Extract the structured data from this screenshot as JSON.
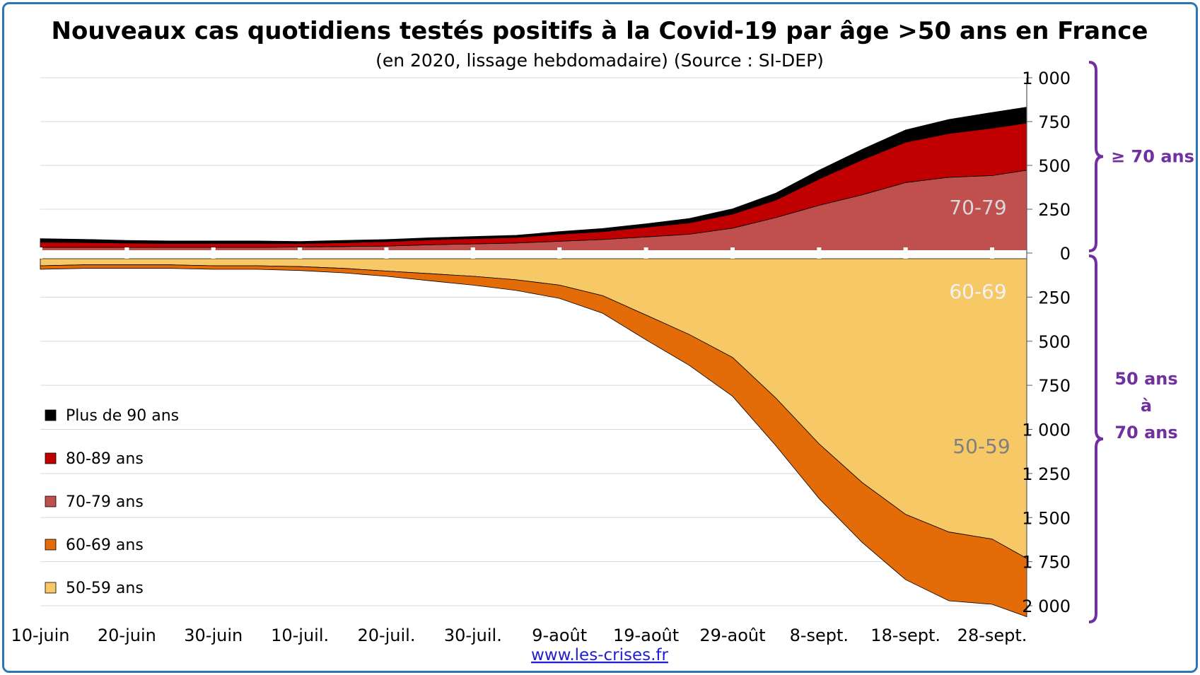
{
  "chart_data": {
    "type": "area",
    "title": "Nouveaux cas quotidiens testés positifs à la Covid-19 par âge >50 ans en France",
    "subtitle": "(en 2020, lissage hebdomadaire) (Source : SI-DEP)",
    "x_tick_labels": [
      "10-juin",
      "20-juin",
      "30-juin",
      "10-juil.",
      "20-juil.",
      "30-juil.",
      "9-août",
      "19-août",
      "29-août",
      "8-sept.",
      "18-sept.",
      "28-sept."
    ],
    "x_ticks_day_index": [
      0,
      10,
      20,
      30,
      40,
      50,
      60,
      70,
      80,
      90,
      100,
      110
    ],
    "y_upper_ticks": [
      "1 000",
      "750",
      "500",
      "250",
      "0"
    ],
    "y_lower_ticks": [
      "250",
      "500",
      "750",
      "1 000",
      "1 250",
      "1 500",
      "1 750",
      "2 000"
    ],
    "ylim_upper": [
      0,
      1000
    ],
    "ylim_lower": [
      0,
      2000
    ],
    "x_day_index": [
      0,
      5,
      10,
      15,
      20,
      25,
      30,
      35,
      40,
      45,
      50,
      55,
      60,
      65,
      70,
      75,
      80,
      85,
      90,
      95,
      100,
      105,
      110,
      114
    ],
    "series": [
      {
        "name": "Plus de 90 ans",
        "color": "#000000",
        "stack": "upper",
        "values": [
          20,
          18,
          15,
          15,
          15,
          15,
          12,
          13,
          12,
          12,
          12,
          12,
          15,
          18,
          20,
          25,
          30,
          40,
          50,
          60,
          70,
          80,
          90,
          90
        ]
      },
      {
        "name": "80-89 ans",
        "color": "#c00000",
        "stack": "upper",
        "values": [
          30,
          28,
          25,
          22,
          22,
          22,
          20,
          22,
          25,
          28,
          30,
          32,
          40,
          45,
          55,
          65,
          80,
          100,
          150,
          200,
          230,
          250,
          270,
          270
        ]
      },
      {
        "name": "70-79 ans",
        "color": "#c0504d",
        "stack": "upper",
        "label": "70-79",
        "values": [
          20,
          20,
          20,
          20,
          20,
          20,
          22,
          25,
          28,
          35,
          40,
          45,
          55,
          65,
          80,
          95,
          130,
          190,
          260,
          320,
          390,
          420,
          430,
          460
        ]
      },
      {
        "name": "60-69 ans",
        "color": "#e36c09",
        "stack": "lower",
        "label": "60-69",
        "values": [
          20,
          20,
          20,
          20,
          20,
          20,
          22,
          25,
          30,
          40,
          50,
          60,
          75,
          100,
          140,
          175,
          220,
          270,
          310,
          340,
          370,
          390,
          370,
          330
        ]
      },
      {
        "name": "50-59 ans",
        "color": "#f6c966",
        "stack": "lower",
        "label": "50-59",
        "values": [
          40,
          35,
          35,
          35,
          40,
          40,
          45,
          55,
          70,
          85,
          100,
          120,
          150,
          210,
          320,
          430,
          560,
          790,
          1050,
          1270,
          1450,
          1550,
          1590,
          1700
        ]
      }
    ],
    "brackets": [
      {
        "label_lines": [
          "≥ 70 ans"
        ],
        "range": "upper"
      },
      {
        "label_lines": [
          "50 ans",
          "à",
          "70 ans"
        ],
        "range": "lower"
      }
    ],
    "legend_position": "bottom-left",
    "grid": true
  },
  "footer": {
    "link_text": "www.les-crises.fr"
  }
}
